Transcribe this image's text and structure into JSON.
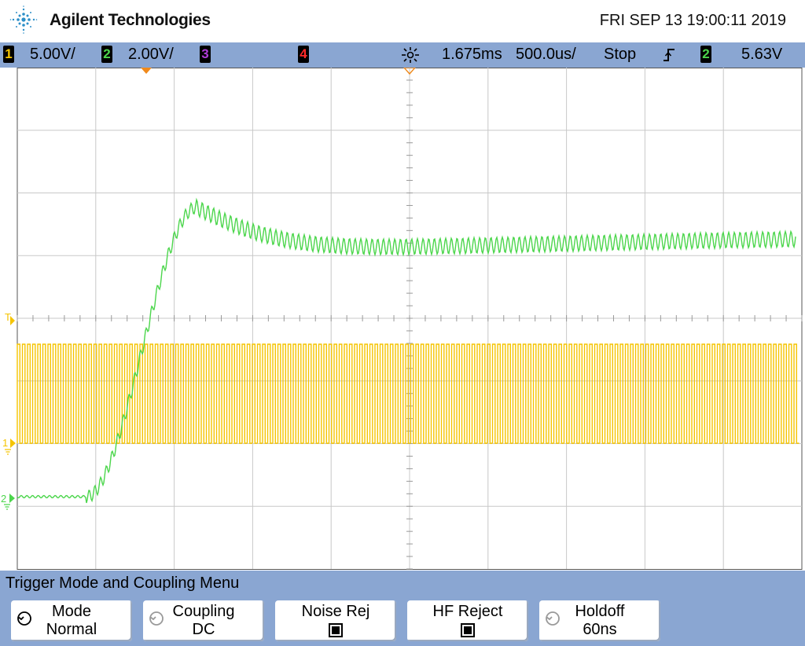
{
  "header": {
    "brand": "Agilent Technologies",
    "datetime": "FRI SEP 13 19:00:11 2019",
    "logo_icon": "agilent-spark-logo-icon"
  },
  "status": {
    "ch1": {
      "number": "1",
      "scale": "5.00V/",
      "color": "#f5c400"
    },
    "ch2": {
      "number": "2",
      "scale": "2.00V/",
      "color": "#4cd64c"
    },
    "ch3": {
      "number": "3",
      "color": "#b03cd8"
    },
    "ch4": {
      "number": "4",
      "color": "#ff2a2a"
    },
    "delay": "1.675ms",
    "timebase": "500.0us/",
    "run_state": "Stop",
    "trigger_slope_icon": "rising-edge-icon",
    "trigger_source": "2",
    "trigger_level": "5.63V"
  },
  "screen": {
    "ground_marker_ch1": "1",
    "ground_marker_ch2": "2",
    "trigger_marker": "T"
  },
  "menu": {
    "title": "Trigger Mode and Coupling Menu",
    "softkeys": [
      {
        "label": "Mode",
        "value": "Normal",
        "icon": "rotary-knob-icon"
      },
      {
        "label": "Coupling",
        "value": "DC",
        "icon": "rotary-knob-icon"
      },
      {
        "label": "Noise Rej",
        "state": "checked"
      },
      {
        "label": "HF Reject",
        "state": "checked"
      },
      {
        "label": "Holdoff",
        "value": "60ns",
        "icon": "rotary-knob-icon"
      }
    ]
  },
  "colors": {
    "ch1_trace": "#f5c400",
    "ch2_trace": "#4cd64c",
    "grid": "#c8c8c8",
    "panel": "#8aa6d2"
  }
}
